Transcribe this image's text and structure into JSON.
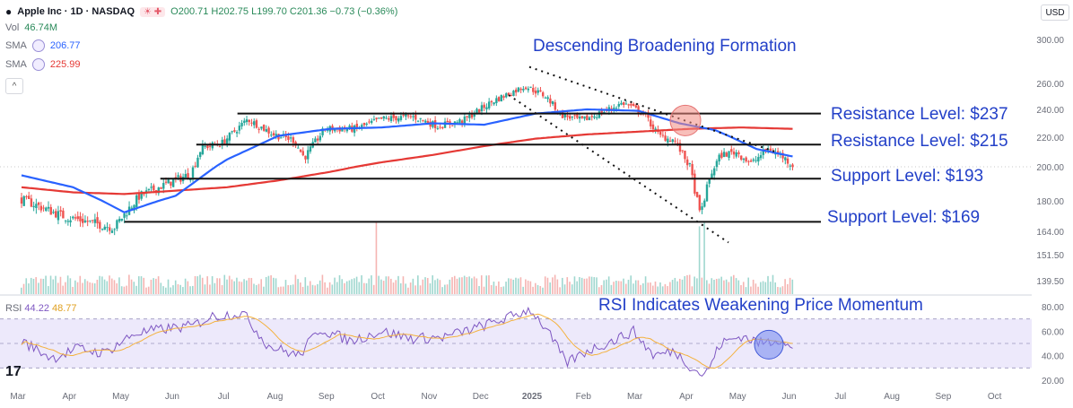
{
  "header": {
    "symbol": "Apple Inc · 1D · NASDAQ",
    "ohlc": "O200.71 H202.75 L199.70 C201.36 −0.73 (−0.36%)",
    "badge": "☀ ✚",
    "vol_label": "Vol",
    "vol_value": "46.74M",
    "sma1_label": "SMA",
    "sma1_value": "206.77",
    "sma2_label": "SMA",
    "sma2_value": "225.99",
    "currency": "USD",
    "collapse": "^"
  },
  "annotations": {
    "title": "Descending Broadening Formation",
    "r1": "Resistance Level: $237",
    "r2": "Resistance Level: $215",
    "s1": "Support Level: $193",
    "s2": "Support Level: $169",
    "rsi_note": "RSI Indicates Weakening Price Momentum"
  },
  "rsi_legend": {
    "label": "RSI",
    "v1": "44.22",
    "v2": "48.77"
  },
  "logo": "17",
  "colors": {
    "up": "#26a69a",
    "down": "#ef5350",
    "sma50": "#2962ff",
    "sma200": "#e53935",
    "rsi": "#7e57c2",
    "rsi_ma": "#f4b13c",
    "annotation": "#2340c8"
  },
  "chart_data": {
    "type": "line",
    "price_axis_ticks": [
      "300.00",
      "260.00",
      "240.00",
      "220.00",
      "200.00",
      "180.00",
      "164.00",
      "151.50",
      "139.50"
    ],
    "rsi_axis_ticks": [
      "80.00",
      "60.00",
      "40.00",
      "20.00"
    ],
    "x_labels": [
      "Mar",
      "Apr",
      "May",
      "Jun",
      "Jul",
      "Aug",
      "Sep",
      "Oct",
      "Nov",
      "Dec",
      "2025",
      "Feb",
      "Mar",
      "Apr",
      "May",
      "Jun",
      "Jul",
      "Aug",
      "Sep",
      "Oct"
    ],
    "levels": [
      237,
      215,
      193,
      169
    ],
    "price_anchors": [
      {
        "m": 0,
        "p": 181
      },
      {
        "m": 0.8,
        "p": 172
      },
      {
        "m": 1.3,
        "p": 169
      },
      {
        "m": 1.8,
        "p": 166
      },
      {
        "m": 2.3,
        "p": 183
      },
      {
        "m": 2.9,
        "p": 191
      },
      {
        "m": 3.3,
        "p": 196
      },
      {
        "m": 3.5,
        "p": 213
      },
      {
        "m": 3.9,
        "p": 216
      },
      {
        "m": 4.4,
        "p": 233
      },
      {
        "m": 4.9,
        "p": 222
      },
      {
        "m": 5.3,
        "p": 218
      },
      {
        "m": 5.5,
        "p": 206
      },
      {
        "m": 5.9,
        "p": 226
      },
      {
        "m": 6.5,
        "p": 226
      },
      {
        "m": 7.0,
        "p": 233
      },
      {
        "m": 7.6,
        "p": 235
      },
      {
        "m": 8.1,
        "p": 228
      },
      {
        "m": 8.6,
        "p": 232
      },
      {
        "m": 9.2,
        "p": 247
      },
      {
        "m": 9.8,
        "p": 258
      },
      {
        "m": 10.2,
        "p": 250
      },
      {
        "m": 10.5,
        "p": 236
      },
      {
        "m": 10.9,
        "p": 232
      },
      {
        "m": 11.3,
        "p": 238
      },
      {
        "m": 11.7,
        "p": 245
      },
      {
        "m": 12.1,
        "p": 237
      },
      {
        "m": 12.4,
        "p": 221
      },
      {
        "m": 12.7,
        "p": 218
      },
      {
        "m": 13.0,
        "p": 200
      },
      {
        "m": 13.2,
        "p": 172
      },
      {
        "m": 13.4,
        "p": 195
      },
      {
        "m": 13.6,
        "p": 208
      },
      {
        "m": 13.9,
        "p": 210
      },
      {
        "m": 14.2,
        "p": 202
      },
      {
        "m": 14.5,
        "p": 212
      },
      {
        "m": 14.8,
        "p": 207
      },
      {
        "m": 15.0,
        "p": 201
      }
    ],
    "sma50_anchors": [
      {
        "m": 0,
        "p": 195
      },
      {
        "m": 1,
        "p": 188
      },
      {
        "m": 2,
        "p": 174
      },
      {
        "m": 3,
        "p": 183
      },
      {
        "m": 4,
        "p": 205
      },
      {
        "m": 5,
        "p": 221
      },
      {
        "m": 6,
        "p": 226
      },
      {
        "m": 7,
        "p": 227
      },
      {
        "m": 8,
        "p": 230
      },
      {
        "m": 9,
        "p": 229
      },
      {
        "m": 10,
        "p": 237
      },
      {
        "m": 11,
        "p": 240
      },
      {
        "m": 12,
        "p": 239
      },
      {
        "m": 12.8,
        "p": 230
      },
      {
        "m": 13.5,
        "p": 225
      },
      {
        "m": 14.3,
        "p": 212
      },
      {
        "m": 15.0,
        "p": 207
      }
    ],
    "sma200_anchors": [
      {
        "m": 0,
        "p": 188
      },
      {
        "m": 1,
        "p": 185
      },
      {
        "m": 2,
        "p": 184
      },
      {
        "m": 3,
        "p": 186
      },
      {
        "m": 4,
        "p": 188
      },
      {
        "m": 5,
        "p": 192
      },
      {
        "m": 6,
        "p": 197
      },
      {
        "m": 7,
        "p": 203
      },
      {
        "m": 8,
        "p": 208
      },
      {
        "m": 9,
        "p": 214
      },
      {
        "m": 10,
        "p": 219
      },
      {
        "m": 11,
        "p": 222
      },
      {
        "m": 12,
        "p": 224
      },
      {
        "m": 13,
        "p": 226
      },
      {
        "m": 14,
        "p": 227
      },
      {
        "m": 15,
        "p": 226
      }
    ],
    "rsi_anchors": [
      {
        "m": 0,
        "p": 52
      },
      {
        "m": 0.6,
        "p": 38
      },
      {
        "m": 1.1,
        "p": 46
      },
      {
        "m": 1.6,
        "p": 42
      },
      {
        "m": 2.2,
        "p": 58
      },
      {
        "m": 2.8,
        "p": 62
      },
      {
        "m": 3.3,
        "p": 64
      },
      {
        "m": 3.7,
        "p": 72
      },
      {
        "m": 4.3,
        "p": 75
      },
      {
        "m": 4.8,
        "p": 48
      },
      {
        "m": 5.4,
        "p": 40
      },
      {
        "m": 5.8,
        "p": 62
      },
      {
        "m": 6.4,
        "p": 52
      },
      {
        "m": 7.0,
        "p": 60
      },
      {
        "m": 7.6,
        "p": 54
      },
      {
        "m": 8.2,
        "p": 55
      },
      {
        "m": 8.8,
        "p": 62
      },
      {
        "m": 9.4,
        "p": 70
      },
      {
        "m": 9.9,
        "p": 78
      },
      {
        "m": 10.2,
        "p": 62
      },
      {
        "m": 10.6,
        "p": 34
      },
      {
        "m": 11.0,
        "p": 44
      },
      {
        "m": 11.5,
        "p": 52
      },
      {
        "m": 11.9,
        "p": 60
      },
      {
        "m": 12.3,
        "p": 40
      },
      {
        "m": 12.7,
        "p": 44
      },
      {
        "m": 13.1,
        "p": 28
      },
      {
        "m": 13.3,
        "p": 24
      },
      {
        "m": 13.6,
        "p": 50
      },
      {
        "m": 14.0,
        "p": 56
      },
      {
        "m": 14.4,
        "p": 50
      },
      {
        "m": 14.8,
        "p": 54
      },
      {
        "m": 15.0,
        "p": 44
      }
    ],
    "volume_spikes": [
      {
        "m": 6.9,
        "v": 5
      },
      {
        "m": 13.2,
        "v": 2.1
      },
      {
        "m": 13.3,
        "v": 2.4
      }
    ]
  }
}
